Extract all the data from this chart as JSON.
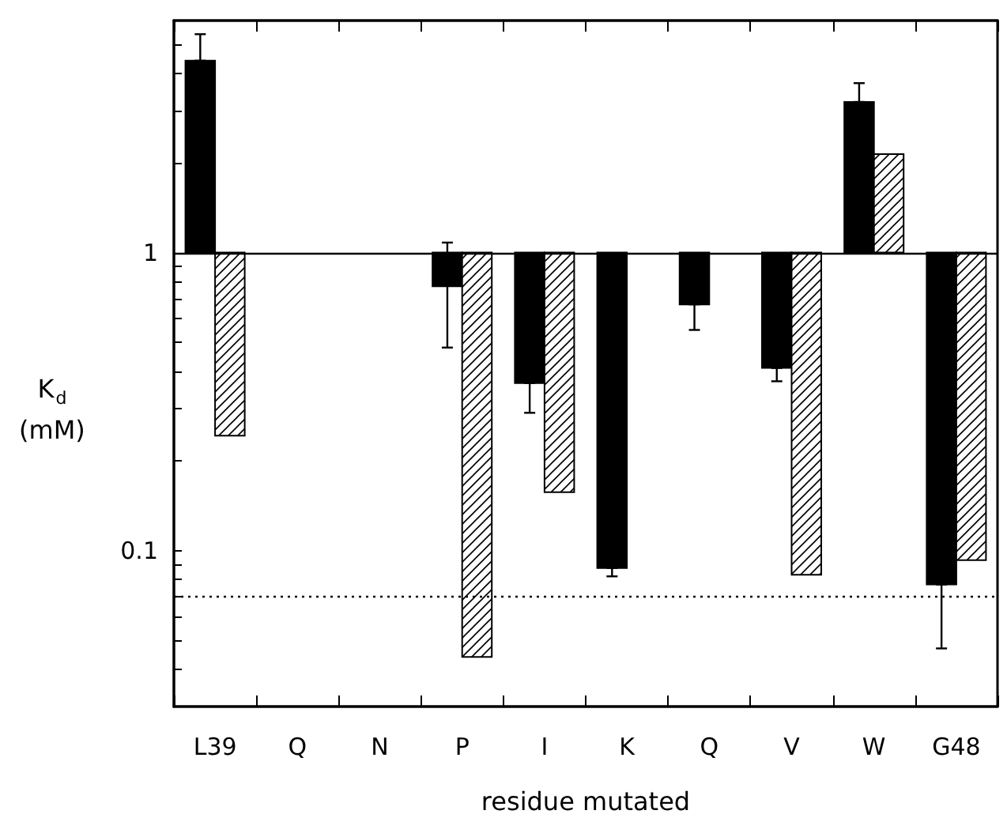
{
  "chart_data": {
    "type": "bar",
    "xlabel": "residue mutated",
    "ylabel": "K$_{d}$\n(mM)",
    "categories": [
      "L39",
      "Q",
      "N",
      "P",
      "I",
      "K",
      "Q",
      "V",
      "W",
      "G48"
    ],
    "series": [
      {
        "color": "#000000",
        "base": [
          1,
          null,
          null,
          1,
          1,
          1,
          1,
          1,
          1,
          1
        ],
        "values": [
          3.4,
          null,
          null,
          -0.23,
          -0.635,
          -0.9125,
          -0.33,
          -0.59,
          2.2,
          -0.923
        ],
        "errors": [
          [
            4.4,
            5.4
          ],
          null,
          null,
          [
            0.48,
            1.08
          ],
          [
            0.29,
            0.365
          ],
          [
            0.082,
            0.0875
          ],
          [
            0.55,
            0.67
          ],
          [
            0.37,
            0.41
          ],
          [
            3.2,
            3.7
          ],
          [
            0.047,
            0.077
          ]
        ]
      },
      {
        "color": "#000000",
        "base": [
          1,
          null,
          null,
          1,
          1,
          null,
          null,
          1,
          1,
          1
        ],
        "values": [
          -0.757,
          null,
          null,
          -0.956,
          -0.843,
          null,
          null,
          -0.917,
          1.14,
          -0.907
        ]
      }
    ],
    "log": "y",
    "ylim": [
      0.03,
      6
    ],
    "yticks": [
      {
        "value": 0.04,
        "label": null
      },
      {
        "value": 0.05,
        "label": null
      },
      {
        "value": 0.06,
        "label": null
      },
      {
        "value": 0.07,
        "label": null
      },
      {
        "value": 0.08,
        "label": null
      },
      {
        "value": 0.09,
        "label": null
      },
      0.1,
      {
        "value": 0.2,
        "label": null
      },
      {
        "value": 0.3,
        "label": null
      },
      {
        "value": 0.4,
        "label": null
      },
      {
        "value": 0.5,
        "label": null
      },
      {
        "value": 0.6,
        "label": null
      },
      {
        "value": 0.7,
        "label": null
      },
      {
        "value": 0.8,
        "label": null
      },
      {
        "value": 0.9,
        "label": null
      },
      1,
      {
        "value": 2,
        "label": null
      },
      {
        "value": 3,
        "label": null
      },
      {
        "value": 4,
        "label": null
      },
      {
        "value": 5,
        "label": null
      }
    ],
    "ref_lines": [
      {
        "axis": "y",
        "value": 1,
        "line_style": "solid",
        "color": "#000000"
      },
      {
        "axis": "y",
        "value": 0.07,
        "line_style": "dotted",
        "color": "#000000"
      }
    ],
    "grid": false
  }
}
